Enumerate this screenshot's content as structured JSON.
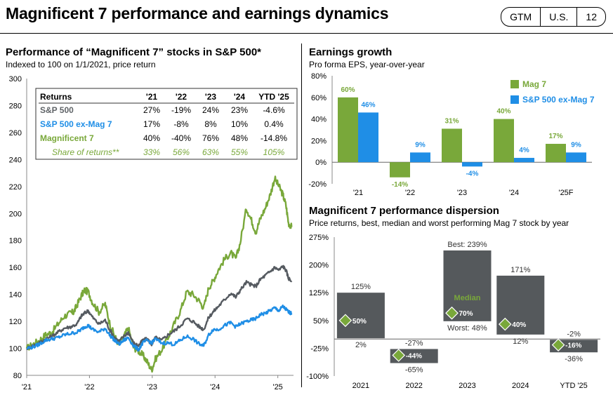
{
  "header": {
    "title": "Magnificent 7 performance and earnings dynamics",
    "tags": [
      "GTM",
      "U.S.",
      "12"
    ]
  },
  "left": {
    "title": "Performance of “Magnificent 7” stocks in S&P 500*",
    "subtitle": "Indexed to 100 on 1/1/2021, price return",
    "table": {
      "headers": [
        "Returns",
        "'21",
        "'22",
        "'23",
        "'24",
        "YTD '25"
      ],
      "rows": [
        {
          "label": "S&P 500",
          "values": [
            "27%",
            "-19%",
            "24%",
            "23%",
            "-4.6%"
          ],
          "color": "#606468"
        },
        {
          "label": "S&P 500 ex-Mag 7",
          "values": [
            "17%",
            "-8%",
            "8%",
            "10%",
            "0.4%"
          ],
          "color": "#1f8ee6"
        },
        {
          "label": "Magnificent 7",
          "values": [
            "40%",
            "-40%",
            "76%",
            "48%",
            "-14.8%"
          ],
          "color": "#79a83a"
        },
        {
          "label": "Share of returns**",
          "values": [
            "33%",
            "56%",
            "63%",
            "55%",
            "105%"
          ],
          "color": "#79a83a",
          "italic": true
        }
      ]
    }
  },
  "earnings": {
    "title": "Earnings growth",
    "subtitle": "Pro forma EPS, year-over-year"
  },
  "dispersion": {
    "title": "Magnificent 7 performance dispersion",
    "subtitle": "Price returns, best, median and worst performing Mag 7 stock by year"
  },
  "chart_data": [
    {
      "type": "line",
      "x_ticks": [
        "'21",
        "'22",
        "'23",
        "'24",
        "'25"
      ],
      "ylim": [
        80,
        300
      ],
      "y_ticks": [
        80,
        100,
        120,
        140,
        160,
        180,
        200,
        220,
        240,
        260,
        280,
        300
      ],
      "x_range": [
        2021.0,
        2025.25
      ],
      "series": [
        {
          "key": "mag7",
          "color": "#79a83a",
          "points": [
            [
              2021.0,
              100
            ],
            [
              2021.1,
              103
            ],
            [
              2021.2,
              106
            ],
            [
              2021.3,
              110
            ],
            [
              2021.4,
              112
            ],
            [
              2021.5,
              118
            ],
            [
              2021.6,
              124
            ],
            [
              2021.7,
              126
            ],
            [
              2021.75,
              127
            ],
            [
              2021.8,
              132
            ],
            [
              2021.87,
              139
            ],
            [
              2021.92,
              143
            ],
            [
              2021.98,
              142
            ],
            [
              2022.05,
              134
            ],
            [
              2022.15,
              127
            ],
            [
              2022.25,
              133
            ],
            [
              2022.32,
              119
            ],
            [
              2022.4,
              109
            ],
            [
              2022.47,
              103
            ],
            [
              2022.55,
              109
            ],
            [
              2022.62,
              115
            ],
            [
              2022.7,
              101
            ],
            [
              2022.78,
              98
            ],
            [
              2022.85,
              95
            ],
            [
              2022.92,
              90
            ],
            [
              2022.99,
              84
            ],
            [
              2023.05,
              92
            ],
            [
              2023.15,
              99
            ],
            [
              2023.25,
              108
            ],
            [
              2023.35,
              118
            ],
            [
              2023.45,
              128
            ],
            [
              2023.55,
              142
            ],
            [
              2023.65,
              140
            ],
            [
              2023.75,
              135
            ],
            [
              2023.82,
              130
            ],
            [
              2023.9,
              145
            ],
            [
              2023.97,
              150
            ],
            [
              2024.05,
              158
            ],
            [
              2024.15,
              166
            ],
            [
              2024.25,
              171
            ],
            [
              2024.33,
              166
            ],
            [
              2024.4,
              178
            ],
            [
              2024.5,
              204
            ],
            [
              2024.58,
              195
            ],
            [
              2024.65,
              186
            ],
            [
              2024.72,
              196
            ],
            [
              2024.8,
              204
            ],
            [
              2024.88,
              214
            ],
            [
              2024.95,
              226
            ],
            [
              2025.02,
              220
            ],
            [
              2025.08,
              214
            ],
            [
              2025.13,
              206
            ],
            [
              2025.17,
              193
            ],
            [
              2025.22,
              190
            ]
          ]
        },
        {
          "key": "sp500",
          "color": "#555a60",
          "points": [
            [
              2021.0,
              100
            ],
            [
              2021.1,
              102
            ],
            [
              2021.2,
              104
            ],
            [
              2021.3,
              107
            ],
            [
              2021.4,
              109
            ],
            [
              2021.5,
              112
            ],
            [
              2021.6,
              115
            ],
            [
              2021.7,
              116
            ],
            [
              2021.8,
              118
            ],
            [
              2021.87,
              124
            ],
            [
              2021.92,
              126
            ],
            [
              2021.98,
              128
            ],
            [
              2022.05,
              123
            ],
            [
              2022.15,
              118
            ],
            [
              2022.25,
              121
            ],
            [
              2022.32,
              114
            ],
            [
              2022.4,
              108
            ],
            [
              2022.47,
              105
            ],
            [
              2022.55,
              109
            ],
            [
              2022.62,
              112
            ],
            [
              2022.7,
              104
            ],
            [
              2022.78,
              102
            ],
            [
              2022.85,
              106
            ],
            [
              2022.92,
              107
            ],
            [
              2022.99,
              103
            ],
            [
              2023.05,
              108
            ],
            [
              2023.15,
              106
            ],
            [
              2023.25,
              110
            ],
            [
              2023.35,
              113
            ],
            [
              2023.45,
              117
            ],
            [
              2023.55,
              122
            ],
            [
              2023.65,
              120
            ],
            [
              2023.75,
              116
            ],
            [
              2023.82,
              114
            ],
            [
              2023.9,
              123
            ],
            [
              2023.97,
              127
            ],
            [
              2024.05,
              131
            ],
            [
              2024.15,
              136
            ],
            [
              2024.25,
              141
            ],
            [
              2024.33,
              138
            ],
            [
              2024.4,
              143
            ],
            [
              2024.5,
              149
            ],
            [
              2024.58,
              147
            ],
            [
              2024.65,
              146
            ],
            [
              2024.72,
              151
            ],
            [
              2024.8,
              154
            ],
            [
              2024.88,
              157
            ],
            [
              2024.95,
              160
            ],
            [
              2025.02,
              158
            ],
            [
              2025.08,
              161
            ],
            [
              2025.13,
              158
            ],
            [
              2025.17,
              152
            ],
            [
              2025.22,
              150
            ]
          ]
        },
        {
          "key": "exmag7",
          "color": "#1f8ee6",
          "points": [
            [
              2021.0,
              100
            ],
            [
              2021.1,
              101
            ],
            [
              2021.2,
              103
            ],
            [
              2021.3,
              106
            ],
            [
              2021.4,
              107
            ],
            [
              2021.5,
              108
            ],
            [
              2021.6,
              110
            ],
            [
              2021.7,
              111
            ],
            [
              2021.8,
              112
            ],
            [
              2021.87,
              114
            ],
            [
              2021.92,
              116
            ],
            [
              2021.98,
              117
            ],
            [
              2022.05,
              114
            ],
            [
              2022.15,
              112
            ],
            [
              2022.25,
              115
            ],
            [
              2022.32,
              110
            ],
            [
              2022.4,
              106
            ],
            [
              2022.47,
              103
            ],
            [
              2022.55,
              106
            ],
            [
              2022.62,
              108
            ],
            [
              2022.7,
              102
            ],
            [
              2022.78,
              99
            ],
            [
              2022.85,
              104
            ],
            [
              2022.92,
              106
            ],
            [
              2022.99,
              104
            ],
            [
              2023.05,
              107
            ],
            [
              2023.15,
              104
            ],
            [
              2023.25,
              104
            ],
            [
              2023.35,
              103
            ],
            [
              2023.45,
              106
            ],
            [
              2023.55,
              109
            ],
            [
              2023.65,
              107
            ],
            [
              2023.75,
              103
            ],
            [
              2023.82,
              102
            ],
            [
              2023.9,
              110
            ],
            [
              2023.97,
              114
            ],
            [
              2024.05,
              114
            ],
            [
              2024.15,
              117
            ],
            [
              2024.25,
              119
            ],
            [
              2024.33,
              116
            ],
            [
              2024.4,
              118
            ],
            [
              2024.5,
              120
            ],
            [
              2024.58,
              121
            ],
            [
              2024.65,
              122
            ],
            [
              2024.72,
              125
            ],
            [
              2024.8,
              126
            ],
            [
              2024.88,
              128
            ],
            [
              2024.95,
              130
            ],
            [
              2025.02,
              128
            ],
            [
              2025.08,
              131
            ],
            [
              2025.13,
              129
            ],
            [
              2025.17,
              127
            ],
            [
              2025.22,
              126
            ]
          ]
        }
      ]
    },
    {
      "type": "bar",
      "categories": [
        "'21",
        "'22",
        "'23",
        "'24",
        "'25F"
      ],
      "series": [
        {
          "name": "Mag 7",
          "color": "#79a83a",
          "values": [
            60,
            -14,
            31,
            40,
            17
          ],
          "labels": [
            "60%",
            "-14%",
            "31%",
            "40%",
            "17%"
          ]
        },
        {
          "name": "S&P 500 ex-Mag 7",
          "color": "#1f8ee6",
          "values": [
            46,
            9,
            -4,
            4,
            9
          ],
          "labels": [
            "46%",
            "9%",
            "-4%",
            "4%",
            "9%"
          ]
        }
      ],
      "ylim": [
        -20,
        80
      ],
      "y_ticks": [
        "-20%",
        "0%",
        "20%",
        "40%",
        "60%",
        "80%"
      ],
      "legend": "top-right"
    },
    {
      "type": "bar",
      "categories": [
        "2021",
        "2022",
        "2023",
        "2024",
        "YTD '25"
      ],
      "best": [
        125,
        -27,
        239,
        171,
        -2
      ],
      "median": [
        50,
        -44,
        70,
        40,
        -16
      ],
      "worst": [
        2,
        -65,
        48,
        12,
        -36
      ],
      "best_labels": [
        "125%",
        "-27%",
        "Best: 239%",
        "171%",
        "-2%"
      ],
      "median_labels": [
        "50%",
        "-44%",
        "70%",
        "40%",
        "-16%"
      ],
      "worst_labels": [
        "2%",
        "-65%",
        "Worst: 48%",
        "12%",
        "-36%"
      ],
      "median_annotation": "Median",
      "ylim": [
        -100,
        275
      ],
      "y_ticks": [
        "-100%",
        "-25%",
        "50%",
        "125%",
        "200%",
        "275%"
      ],
      "bar_color": "#55595c",
      "median_color": "#79a83a"
    }
  ]
}
